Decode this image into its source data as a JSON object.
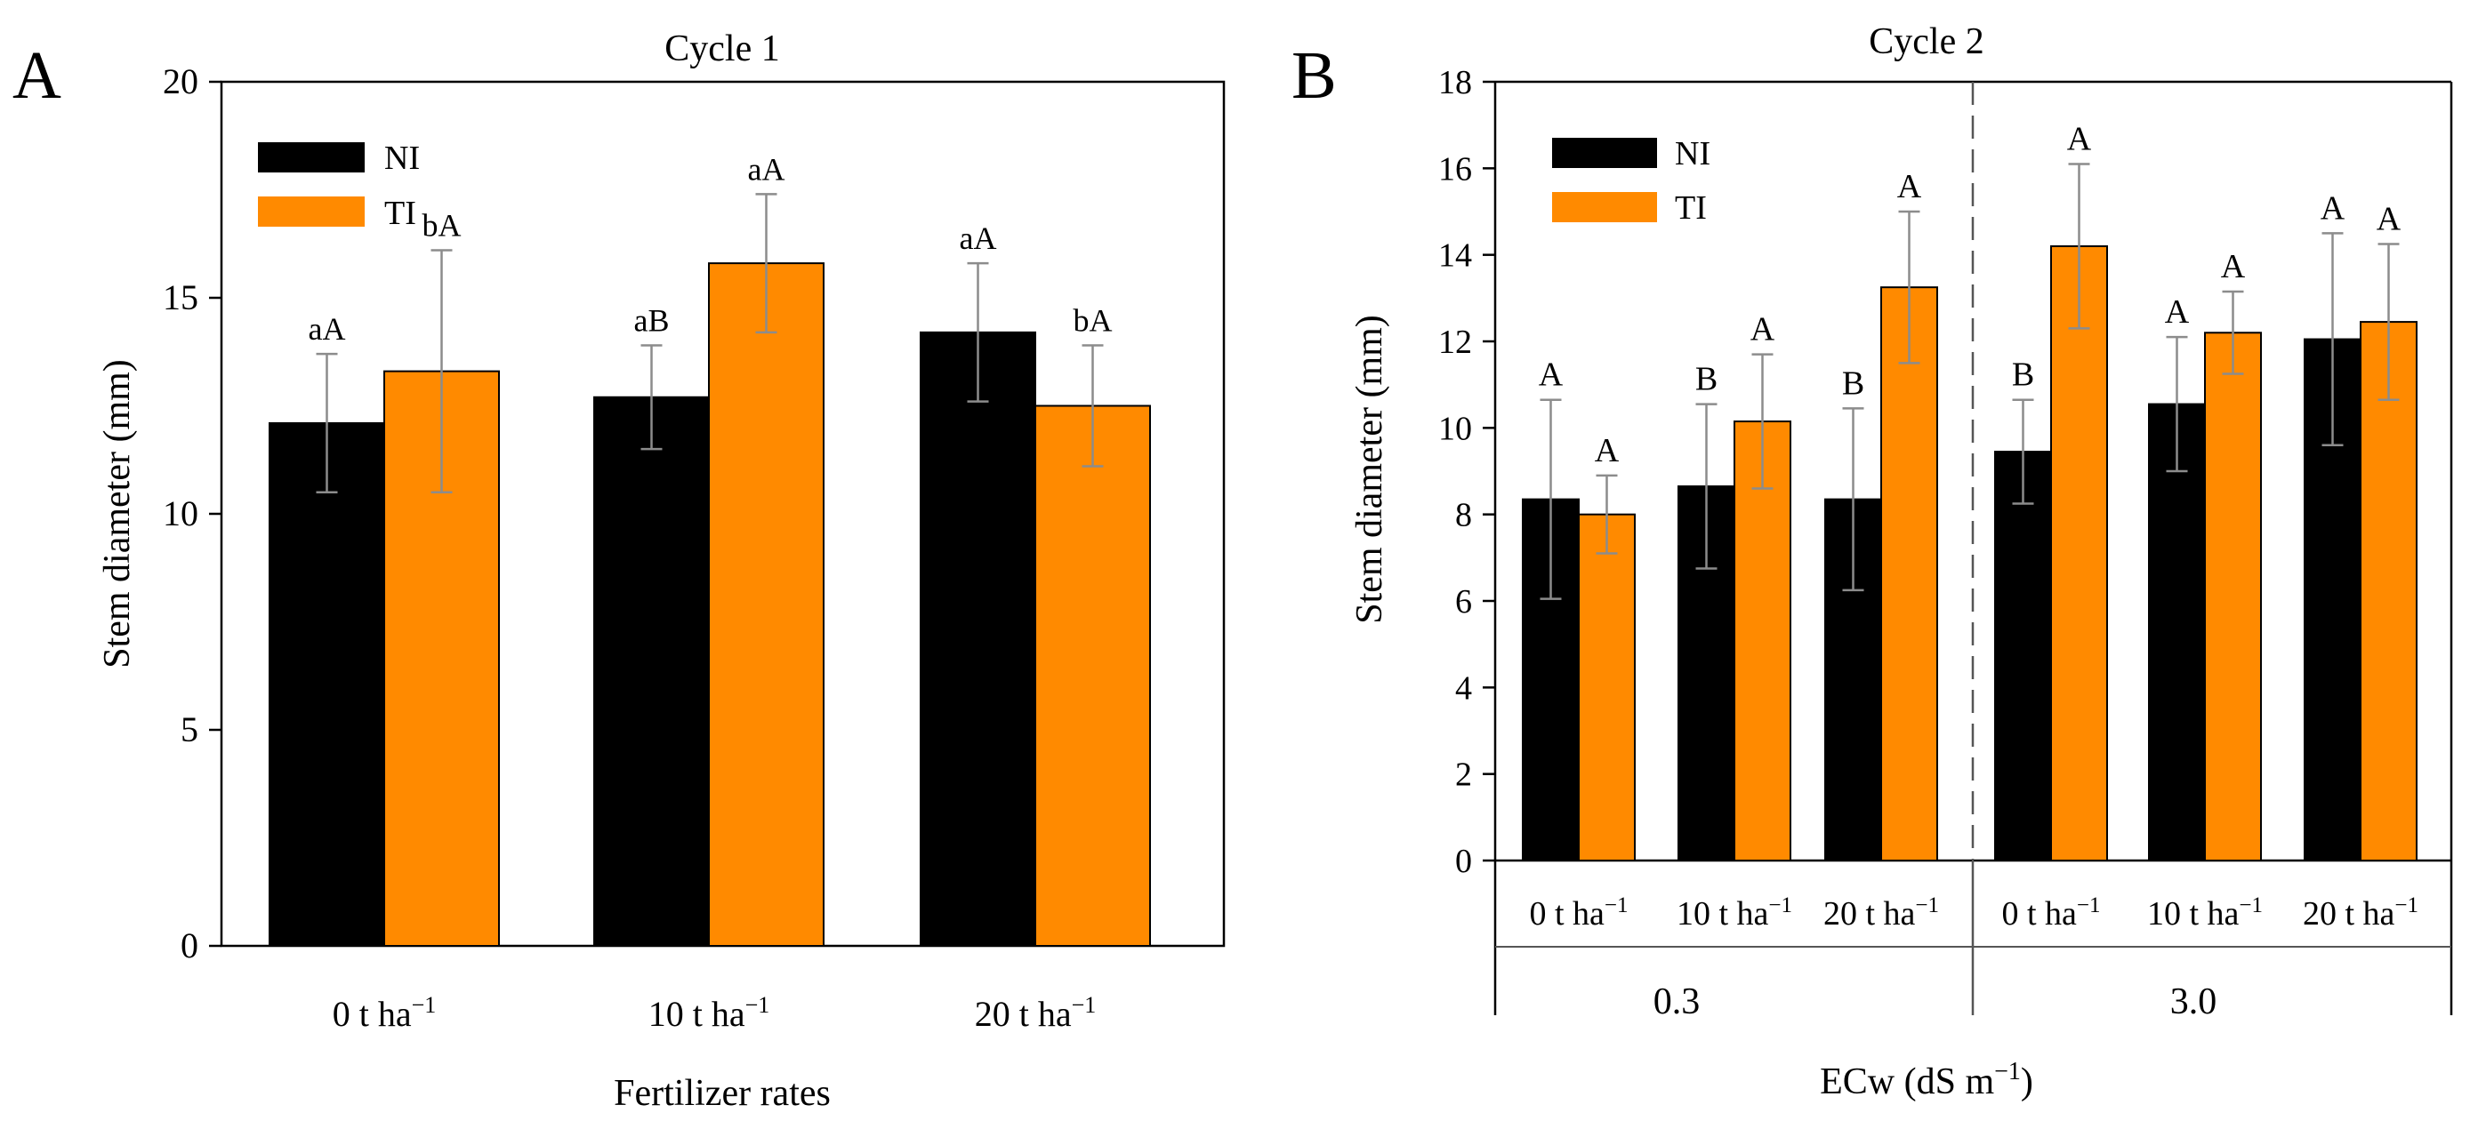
{
  "colors": {
    "NI": "#000000",
    "TI": "#FF8A00",
    "error_bar": "#8c8c8c",
    "axis": "#000000",
    "divider": "#555555"
  },
  "chart_data": [
    {
      "panel": "A",
      "type": "bar",
      "title": "Cycle 1",
      "xlabel": "Fertilizer rates",
      "ylabel": "Stem diameter (mm)",
      "ylim": [
        0,
        20
      ],
      "yticks": [
        0,
        5,
        10,
        15,
        20
      ],
      "legend": [
        "NI",
        "TI"
      ],
      "legend_position": "top-left",
      "categories": [
        {
          "base": "0 t ha",
          "sup": "−1"
        },
        {
          "base": "10 t ha",
          "sup": "−1"
        },
        {
          "base": "20 t ha",
          "sup": "−1"
        }
      ],
      "series": [
        {
          "name": "NI",
          "values": [
            12.1,
            12.7,
            14.2
          ],
          "errors": [
            1.6,
            1.2,
            1.6
          ],
          "labels": [
            "aA",
            "aB",
            "aA"
          ]
        },
        {
          "name": "TI",
          "values": [
            13.3,
            15.8,
            12.5
          ],
          "errors": [
            2.8,
            1.6,
            1.4
          ],
          "labels": [
            "bA",
            "aA",
            "bA"
          ]
        }
      ]
    },
    {
      "panel": "B",
      "type": "bar",
      "title": "Cycle 2",
      "ylabel": "Stem diameter (mm)",
      "xlabel": {
        "base": "ECw (dS m",
        "sup": "−1",
        "close": ")"
      },
      "ylim": [
        0,
        18
      ],
      "yticks": [
        0,
        2,
        4,
        6,
        8,
        10,
        12,
        14,
        16,
        18
      ],
      "legend": [
        "NI",
        "TI"
      ],
      "legend_position": "top-left",
      "groups": [
        "0.3",
        "3.0"
      ],
      "categories": [
        {
          "base": "0 t ha",
          "sup": "−1"
        },
        {
          "base": "10 t ha",
          "sup": "−1"
        },
        {
          "base": "20 t ha",
          "sup": "−1"
        },
        {
          "base": "0 t ha",
          "sup": "−1"
        },
        {
          "base": "10 t ha",
          "sup": "−1"
        },
        {
          "base": "20 t ha",
          "sup": "−1"
        }
      ],
      "series": [
        {
          "name": "NI",
          "values": [
            8.35,
            8.65,
            8.35,
            9.45,
            10.55,
            12.05
          ],
          "errors": [
            2.3,
            1.9,
            2.1,
            1.2,
            1.55,
            2.45
          ],
          "labels": [
            "A",
            "B",
            "B",
            "B",
            "A",
            "A"
          ]
        },
        {
          "name": "TI",
          "values": [
            8.0,
            10.15,
            13.25,
            14.2,
            12.2,
            12.45
          ],
          "errors": [
            0.9,
            1.55,
            1.75,
            1.9,
            0.95,
            1.8
          ],
          "labels": [
            "A",
            "A",
            "A",
            "A",
            "A",
            "A"
          ]
        }
      ]
    }
  ],
  "panel_labels": [
    "A",
    "B"
  ]
}
